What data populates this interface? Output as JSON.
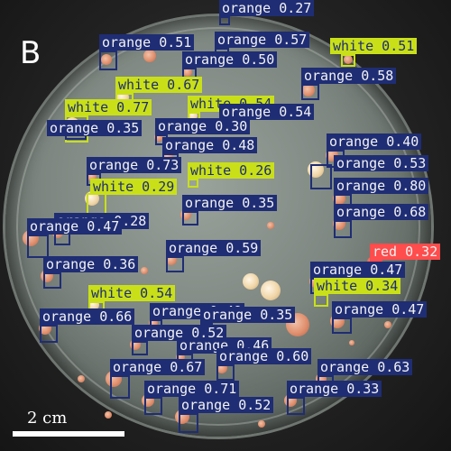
{
  "panel_letter": "B",
  "scale_label": "2 cm",
  "colors": {
    "orange": "#1f2d74",
    "white": "#c9e018",
    "red": "#ff4c4c"
  },
  "detections": [
    {
      "cls": "orange",
      "text": "orange 0.27"
    },
    {
      "cls": "orange",
      "text": "orange 0.51"
    },
    {
      "cls": "orange",
      "text": "orange 0.57"
    },
    {
      "cls": "white",
      "text": "white 0.51"
    },
    {
      "cls": "orange",
      "text": "orange 0.50"
    },
    {
      "cls": "orange",
      "text": "orange 0.58"
    },
    {
      "cls": "white",
      "text": "white 0.67"
    },
    {
      "cls": "white",
      "text": "white 0.54"
    },
    {
      "cls": "white",
      "text": "white 0.77"
    },
    {
      "cls": "orange",
      "text": "orange 0.54"
    },
    {
      "cls": "orange",
      "text": "orange 0.35"
    },
    {
      "cls": "orange",
      "text": "orange 0.30"
    },
    {
      "cls": "orange",
      "text": "orange 0.48"
    },
    {
      "cls": "orange",
      "text": "orange 0.40"
    },
    {
      "cls": "orange",
      "text": "orange 0.73"
    },
    {
      "cls": "white",
      "text": "white 0.26"
    },
    {
      "cls": "orange",
      "text": "orange 0.53"
    },
    {
      "cls": "white",
      "text": "white 0.29"
    },
    {
      "cls": "orange",
      "text": "orange 0.80"
    },
    {
      "cls": "orange",
      "text": "orange 0.35"
    },
    {
      "cls": "orange",
      "text": "orange 0.28"
    },
    {
      "cls": "orange",
      "text": "orange 0.68"
    },
    {
      "cls": "orange",
      "text": "orange 0.47"
    },
    {
      "cls": "orange",
      "text": "orange 0.59"
    },
    {
      "cls": "red",
      "text": "red 0.32"
    },
    {
      "cls": "orange",
      "text": "orange 0.36"
    },
    {
      "cls": "orange",
      "text": "orange 0.47"
    },
    {
      "cls": "white",
      "text": "white 0.54"
    },
    {
      "cls": "white",
      "text": "white 0.34"
    },
    {
      "cls": "orange",
      "text": "orange 0.66"
    },
    {
      "cls": "orange",
      "text": "orange 0.49"
    },
    {
      "cls": "orange",
      "text": "orange 0.35"
    },
    {
      "cls": "orange",
      "text": "orange 0.47"
    },
    {
      "cls": "orange",
      "text": "orange 0.52"
    },
    {
      "cls": "orange",
      "text": "orange 0.46"
    },
    {
      "cls": "orange",
      "text": "orange 0.60"
    },
    {
      "cls": "orange",
      "text": "orange 0.67"
    },
    {
      "cls": "orange",
      "text": "orange 0.63"
    },
    {
      "cls": "orange",
      "text": "orange 0.71"
    },
    {
      "cls": "orange",
      "text": "orange 0.33"
    },
    {
      "cls": "orange",
      "text": "orange 0.52"
    }
  ]
}
